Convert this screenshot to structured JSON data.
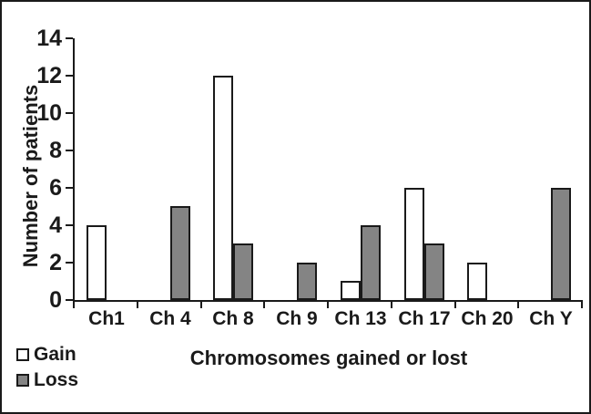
{
  "figure": {
    "background": "#ffffff",
    "border_color": "#1a1a1a",
    "text_color": "#1a1a1a"
  },
  "chart_data": {
    "type": "bar",
    "title": "",
    "xlabel": "Chromosomes gained or lost",
    "ylabel": "Number of patients",
    "categories": [
      "Ch1",
      "Ch 4",
      "Ch 8",
      "Ch 9",
      "Ch 13",
      "Ch 17",
      "Ch 20",
      "Ch Y"
    ],
    "series": [
      {
        "name": "Gain",
        "fill": "#ffffff",
        "values": [
          4,
          0,
          12,
          0,
          1,
          6,
          2,
          0
        ]
      },
      {
        "name": "Loss",
        "fill": "#848484",
        "values": [
          0,
          5,
          3,
          2,
          4,
          3,
          0,
          6
        ]
      }
    ],
    "ylim": [
      0,
      14
    ],
    "ytick_step": 2,
    "yticks": [
      0,
      2,
      4,
      6,
      8,
      10,
      12,
      14
    ],
    "grid": false,
    "legend_position": "bottom-left",
    "bar_border_color": "#1a1a1a"
  },
  "legend": {
    "items": [
      {
        "label": "Gain",
        "fill": "#ffffff"
      },
      {
        "label": "Loss",
        "fill": "#848484"
      }
    ]
  }
}
